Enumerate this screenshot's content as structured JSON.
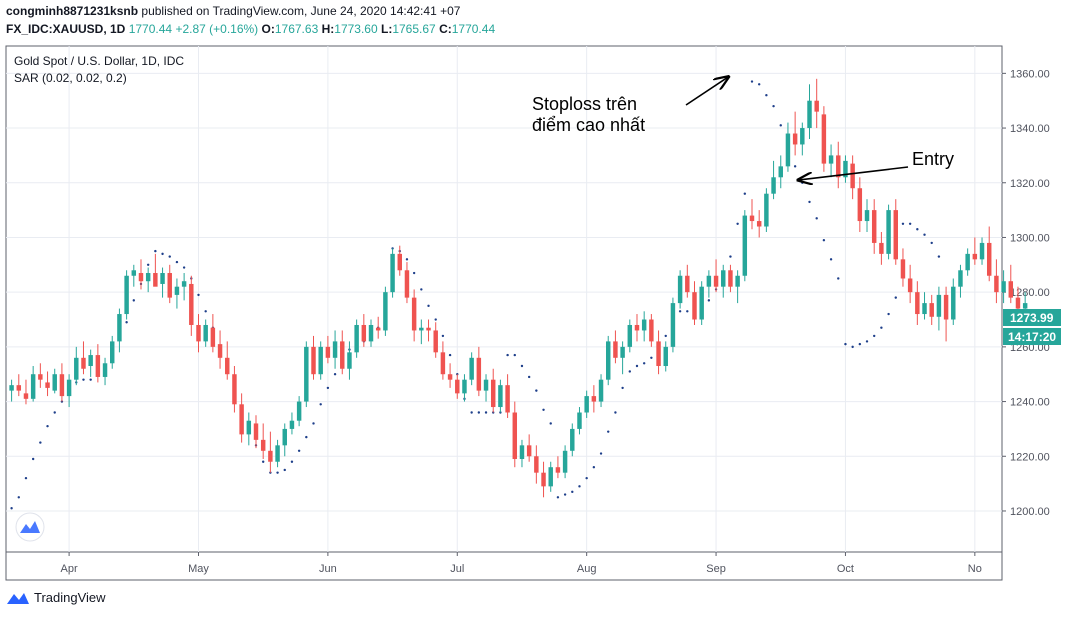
{
  "header": {
    "publisher": "congminh8871231ksnb",
    "published_text": "published on TradingView.com, June 24, 2020 14:42:41 +07",
    "symbol": "FX_IDC:XAUUSD, 1D",
    "last": "1770.44",
    "change": "+2.87 (+0.16%)",
    "o_label": "O:",
    "o_value": "1767.63",
    "h_label": "H:",
    "h_value": "1773.60",
    "l_label": "L:",
    "l_value": "1765.67",
    "c_label": "C:",
    "c_value": "1770.44"
  },
  "footer": {
    "brand": "TradingView"
  },
  "colors": {
    "up": "#26a69a",
    "down": "#ef5350",
    "sar": "#1e3f8a",
    "grid": "#e9ecf2",
    "axis_text": "#50535e"
  },
  "chart_data": {
    "type": "candlestick",
    "title": "Gold Spot / U.S. Dollar, 1D, IDC",
    "indicator": "SAR (0.02, 0.02, 0.2)",
    "y_ticks": [
      "1200.00",
      "1220.00",
      "1240.00",
      "1260.00",
      "1280.00",
      "1300.00",
      "1320.00",
      "1340.00",
      "1360.00"
    ],
    "ylim": [
      1185,
      1370
    ],
    "x_ticks": [
      "Apr",
      "May",
      "Jun",
      "Jul",
      "Aug",
      "Sep",
      "Oct",
      "No"
    ],
    "x_tick_index": [
      8,
      26,
      44,
      62,
      80,
      98,
      116,
      134
    ],
    "n_bars": 138,
    "price_label": "1273.99",
    "time_label": "14:17:20",
    "annotations": [
      {
        "text": "Stoploss trên",
        "text2": "điểm cao nhất",
        "target_index": 100,
        "target_value": 1358
      },
      {
        "text": "Entry",
        "target_index": 109,
        "target_value": 1321
      }
    ],
    "candles": [
      [
        1244,
        1248,
        1240,
        1246
      ],
      [
        1246,
        1250,
        1242,
        1244
      ],
      [
        1243,
        1248,
        1239,
        1241
      ],
      [
        1241,
        1253,
        1240,
        1250
      ],
      [
        1250,
        1254,
        1245,
        1248
      ],
      [
        1247,
        1251,
        1242,
        1245
      ],
      [
        1244,
        1252,
        1243,
        1250
      ],
      [
        1250,
        1254,
        1240,
        1242
      ],
      [
        1242,
        1250,
        1238,
        1248
      ],
      [
        1248,
        1260,
        1246,
        1256
      ],
      [
        1256,
        1262,
        1250,
        1252
      ],
      [
        1253,
        1259,
        1249,
        1257
      ],
      [
        1257,
        1261,
        1247,
        1249
      ],
      [
        1249,
        1256,
        1246,
        1254
      ],
      [
        1254,
        1264,
        1252,
        1262
      ],
      [
        1262,
        1274,
        1258,
        1272
      ],
      [
        1272,
        1288,
        1270,
        1286
      ],
      [
        1286,
        1290,
        1282,
        1288
      ],
      [
        1287,
        1292,
        1281,
        1284
      ],
      [
        1284,
        1289,
        1280,
        1287
      ],
      [
        1287,
        1294,
        1283,
        1282
      ],
      [
        1283,
        1289,
        1278,
        1287
      ],
      [
        1287,
        1290,
        1276,
        1278
      ],
      [
        1279,
        1285,
        1274,
        1282
      ],
      [
        1282,
        1287,
        1277,
        1284
      ],
      [
        1283,
        1286,
        1264,
        1268
      ],
      [
        1268,
        1272,
        1258,
        1262
      ],
      [
        1262,
        1270,
        1260,
        1268
      ],
      [
        1267,
        1272,
        1258,
        1260
      ],
      [
        1261,
        1266,
        1252,
        1256
      ],
      [
        1256,
        1262,
        1248,
        1250
      ],
      [
        1250,
        1253,
        1236,
        1239
      ],
      [
        1239,
        1243,
        1225,
        1228
      ],
      [
        1228,
        1236,
        1224,
        1233
      ],
      [
        1232,
        1235,
        1223,
        1226
      ],
      [
        1226,
        1232,
        1219,
        1222
      ],
      [
        1222,
        1229,
        1214,
        1218
      ],
      [
        1218,
        1226,
        1216,
        1224
      ],
      [
        1224,
        1232,
        1220,
        1230
      ],
      [
        1230,
        1236,
        1228,
        1233
      ],
      [
        1233,
        1242,
        1231,
        1240
      ],
      [
        1240,
        1262,
        1238,
        1260
      ],
      [
        1260,
        1264,
        1248,
        1250
      ],
      [
        1250,
        1262,
        1248,
        1260
      ],
      [
        1260,
        1264,
        1254,
        1256
      ],
      [
        1256,
        1266,
        1252,
        1262
      ],
      [
        1262,
        1266,
        1250,
        1252
      ],
      [
        1252,
        1262,
        1248,
        1258
      ],
      [
        1258,
        1270,
        1256,
        1268
      ],
      [
        1268,
        1272,
        1260,
        1262
      ],
      [
        1262,
        1270,
        1260,
        1268
      ],
      [
        1267,
        1271,
        1263,
        1266
      ],
      [
        1266,
        1282,
        1264,
        1280
      ],
      [
        1280,
        1296,
        1278,
        1294
      ],
      [
        1294,
        1297,
        1286,
        1288
      ],
      [
        1288,
        1291,
        1276,
        1278
      ],
      [
        1278,
        1281,
        1262,
        1266
      ],
      [
        1266,
        1270,
        1261,
        1267
      ],
      [
        1267,
        1270,
        1262,
        1266
      ],
      [
        1266,
        1269,
        1256,
        1258
      ],
      [
        1258,
        1262,
        1248,
        1250
      ],
      [
        1250,
        1254,
        1245,
        1248
      ],
      [
        1248,
        1250,
        1241,
        1243
      ],
      [
        1243,
        1250,
        1240,
        1248
      ],
      [
        1248,
        1258,
        1246,
        1256
      ],
      [
        1256,
        1260,
        1242,
        1244
      ],
      [
        1244,
        1250,
        1240,
        1248
      ],
      [
        1248,
        1252,
        1236,
        1238
      ],
      [
        1238,
        1248,
        1236,
        1246
      ],
      [
        1246,
        1250,
        1234,
        1236
      ],
      [
        1236,
        1240,
        1216,
        1219
      ],
      [
        1219,
        1226,
        1216,
        1224
      ],
      [
        1224,
        1228,
        1218,
        1220
      ],
      [
        1220,
        1224,
        1210,
        1214
      ],
      [
        1214,
        1218,
        1205,
        1209
      ],
      [
        1209,
        1218,
        1207,
        1216
      ],
      [
        1216,
        1220,
        1212,
        1214
      ],
      [
        1214,
        1224,
        1212,
        1222
      ],
      [
        1222,
        1232,
        1220,
        1230
      ],
      [
        1230,
        1238,
        1228,
        1236
      ],
      [
        1236,
        1244,
        1234,
        1242
      ],
      [
        1242,
        1246,
        1236,
        1240
      ],
      [
        1240,
        1250,
        1238,
        1248
      ],
      [
        1248,
        1264,
        1246,
        1262
      ],
      [
        1262,
        1266,
        1254,
        1256
      ],
      [
        1256,
        1262,
        1250,
        1260
      ],
      [
        1260,
        1270,
        1258,
        1268
      ],
      [
        1268,
        1272,
        1262,
        1266
      ],
      [
        1266,
        1273,
        1262,
        1270
      ],
      [
        1270,
        1272,
        1260,
        1262
      ],
      [
        1262,
        1266,
        1250,
        1253
      ],
      [
        1253,
        1262,
        1251,
        1260
      ],
      [
        1260,
        1278,
        1258,
        1276
      ],
      [
        1276,
        1288,
        1274,
        1286
      ],
      [
        1286,
        1290,
        1278,
        1280
      ],
      [
        1280,
        1284,
        1268,
        1270
      ],
      [
        1270,
        1284,
        1268,
        1282
      ],
      [
        1282,
        1288,
        1278,
        1286
      ],
      [
        1286,
        1292,
        1280,
        1282
      ],
      [
        1282,
        1290,
        1278,
        1288
      ],
      [
        1288,
        1290,
        1280,
        1282
      ],
      [
        1282,
        1288,
        1276,
        1286
      ],
      [
        1286,
        1310,
        1284,
        1308
      ],
      [
        1308,
        1314,
        1303,
        1306
      ],
      [
        1306,
        1310,
        1300,
        1304
      ],
      [
        1304,
        1318,
        1302,
        1316
      ],
      [
        1316,
        1328,
        1314,
        1322
      ],
      [
        1322,
        1330,
        1318,
        1326
      ],
      [
        1326,
        1342,
        1324,
        1338
      ],
      [
        1338,
        1346,
        1330,
        1334
      ],
      [
        1334,
        1342,
        1330,
        1340
      ],
      [
        1340,
        1356,
        1336,
        1350
      ],
      [
        1350,
        1358,
        1340,
        1346
      ],
      [
        1345,
        1348,
        1324,
        1327
      ],
      [
        1327,
        1334,
        1322,
        1330
      ],
      [
        1330,
        1335,
        1318,
        1322
      ],
      [
        1322,
        1330,
        1320,
        1328
      ],
      [
        1327,
        1330,
        1314,
        1318
      ],
      [
        1318,
        1322,
        1302,
        1306
      ],
      [
        1306,
        1314,
        1302,
        1310
      ],
      [
        1310,
        1314,
        1294,
        1298
      ],
      [
        1298,
        1302,
        1290,
        1294
      ],
      [
        1294,
        1312,
        1292,
        1310
      ],
      [
        1310,
        1314,
        1290,
        1292
      ],
      [
        1292,
        1296,
        1282,
        1285
      ],
      [
        1285,
        1290,
        1276,
        1280
      ],
      [
        1280,
        1284,
        1268,
        1272
      ],
      [
        1272,
        1280,
        1270,
        1276
      ],
      [
        1276,
        1279,
        1268,
        1271
      ],
      [
        1271,
        1282,
        1266,
        1279
      ],
      [
        1279,
        1282,
        1262,
        1270
      ],
      [
        1270,
        1285,
        1268,
        1282
      ],
      [
        1282,
        1290,
        1278,
        1288
      ],
      [
        1288,
        1296,
        1286,
        1294
      ],
      [
        1294,
        1300,
        1290,
        1292
      ],
      [
        1292,
        1300,
        1290,
        1298
      ],
      [
        1298,
        1304,
        1284,
        1286
      ],
      [
        1286,
        1292,
        1276,
        1280
      ],
      [
        1280,
        1288,
        1276,
        1284
      ],
      [
        1284,
        1290,
        1276,
        1278
      ],
      [
        1278,
        1282,
        1270,
        1274
      ],
      [
        1274,
        1280,
        1272,
        1276
      ]
    ],
    "sar": [
      [
        0,
        1201
      ],
      [
        1,
        1205
      ],
      [
        2,
        1212
      ],
      [
        3,
        1219
      ],
      [
        4,
        1225
      ],
      [
        5,
        1231
      ],
      [
        6,
        1236
      ],
      [
        7,
        1240
      ],
      [
        8,
        1244
      ],
      [
        9,
        1247
      ],
      [
        10,
        1248
      ],
      [
        11,
        1248
      ],
      [
        12,
        1250
      ],
      [
        13,
        1252
      ],
      [
        14,
        1256
      ],
      [
        15,
        1263
      ],
      [
        16,
        1269
      ],
      [
        17,
        1277
      ],
      [
        18,
        1283
      ],
      [
        19,
        1290
      ],
      [
        20,
        1295
      ],
      [
        21,
        1294
      ],
      [
        22,
        1293
      ],
      [
        23,
        1291
      ],
      [
        24,
        1289
      ],
      [
        25,
        1285
      ],
      [
        26,
        1279
      ],
      [
        27,
        1273
      ],
      [
        28,
        1267
      ],
      [
        29,
        1260
      ],
      [
        30,
        1253
      ],
      [
        31,
        1244
      ],
      [
        32,
        1236
      ],
      [
        33,
        1230
      ],
      [
        34,
        1224
      ],
      [
        35,
        1218
      ],
      [
        36,
        1214
      ],
      [
        37,
        1214
      ],
      [
        38,
        1215
      ],
      [
        39,
        1218
      ],
      [
        40,
        1222
      ],
      [
        41,
        1227
      ],
      [
        42,
        1232
      ],
      [
        43,
        1239
      ],
      [
        44,
        1245
      ],
      [
        45,
        1250
      ],
      [
        46,
        1255
      ],
      [
        47,
        1259
      ],
      [
        48,
        1261
      ],
      [
        49,
        1262
      ],
      [
        50,
        1264
      ],
      [
        51,
        1267
      ],
      [
        52,
        1276
      ],
      [
        53,
        1296
      ],
      [
        54,
        1295
      ],
      [
        55,
        1292
      ],
      [
        56,
        1287
      ],
      [
        57,
        1281
      ],
      [
        58,
        1275
      ],
      [
        59,
        1270
      ],
      [
        60,
        1264
      ],
      [
        61,
        1257
      ],
      [
        62,
        1250
      ],
      [
        63,
        1241
      ],
      [
        64,
        1236
      ],
      [
        65,
        1236
      ],
      [
        66,
        1236
      ],
      [
        67,
        1236
      ],
      [
        68,
        1236
      ],
      [
        69,
        1257
      ],
      [
        70,
        1257
      ],
      [
        71,
        1253
      ],
      [
        72,
        1249
      ],
      [
        73,
        1244
      ],
      [
        74,
        1237
      ],
      [
        75,
        1232
      ],
      [
        76,
        1205
      ],
      [
        77,
        1206
      ],
      [
        78,
        1207
      ],
      [
        79,
        1209
      ],
      [
        80,
        1212
      ],
      [
        81,
        1216
      ],
      [
        82,
        1221
      ],
      [
        83,
        1229
      ],
      [
        84,
        1236
      ],
      [
        85,
        1245
      ],
      [
        86,
        1251
      ],
      [
        87,
        1253
      ],
      [
        88,
        1254
      ],
      [
        89,
        1256
      ],
      [
        90,
        1260
      ],
      [
        91,
        1264
      ],
      [
        92,
        1270
      ],
      [
        93,
        1273
      ],
      [
        94,
        1273
      ],
      [
        95,
        1274
      ],
      [
        96,
        1275
      ],
      [
        97,
        1277
      ],
      [
        98,
        1281
      ],
      [
        99,
        1287
      ],
      [
        100,
        1293
      ],
      [
        101,
        1305
      ],
      [
        102,
        1316
      ],
      [
        103,
        1357
      ],
      [
        104,
        1356
      ],
      [
        105,
        1352
      ],
      [
        106,
        1348
      ],
      [
        107,
        1341
      ],
      [
        108,
        1334
      ],
      [
        109,
        1326
      ],
      [
        110,
        1320
      ],
      [
        111,
        1313
      ],
      [
        112,
        1307
      ],
      [
        113,
        1299
      ],
      [
        114,
        1292
      ],
      [
        115,
        1285
      ],
      [
        116,
        1261
      ],
      [
        117,
        1260
      ],
      [
        118,
        1261
      ],
      [
        119,
        1262
      ],
      [
        120,
        1264
      ],
      [
        121,
        1267
      ],
      [
        122,
        1272
      ],
      [
        123,
        1278
      ],
      [
        124,
        1305
      ],
      [
        125,
        1305
      ],
      [
        126,
        1303
      ],
      [
        127,
        1301
      ],
      [
        128,
        1298
      ],
      [
        129,
        1293
      ]
    ]
  }
}
